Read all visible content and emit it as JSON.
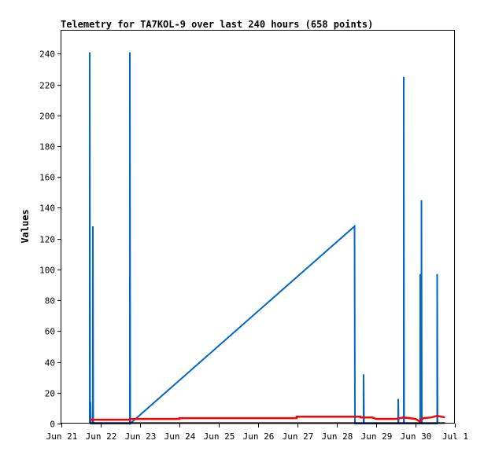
{
  "chart_data": {
    "type": "line",
    "title": "Telemetry for TA7KOL-9 over last 240 hours (658 points)",
    "ylabel": "Values",
    "xlabel": "",
    "ylim": [
      0,
      255
    ],
    "y_ticks": [
      0,
      20,
      40,
      60,
      80,
      100,
      120,
      140,
      160,
      180,
      200,
      220,
      240
    ],
    "xlim": [
      0,
      10
    ],
    "x_ticks": [
      {
        "x": 0,
        "label": "Jun 21"
      },
      {
        "x": 1,
        "label": "Jun 22"
      },
      {
        "x": 2,
        "label": "Jun 23"
      },
      {
        "x": 3,
        "label": "Jun 24"
      },
      {
        "x": 4,
        "label": "Jun 25"
      },
      {
        "x": 5,
        "label": "Jun 26"
      },
      {
        "x": 6,
        "label": "Jun 27"
      },
      {
        "x": 7,
        "label": "Jun 28"
      },
      {
        "x": 8,
        "label": "Jun 29"
      },
      {
        "x": 9,
        "label": "Jun 30"
      },
      {
        "x": 10,
        "label": "Jul 1"
      }
    ],
    "grid": false,
    "legend": "none",
    "series": [
      {
        "color": "#0066cc",
        "points": [
          [
            0.72,
            0
          ],
          [
            0.72,
            241
          ],
          [
            0.73,
            0
          ],
          [
            0.74,
            14
          ],
          [
            0.75,
            0
          ],
          [
            0.8,
            0
          ],
          [
            0.8,
            128
          ],
          [
            0.81,
            0
          ],
          [
            1.74,
            0
          ],
          [
            1.74,
            241
          ],
          [
            1.75,
            0
          ],
          [
            7.45,
            128
          ],
          [
            7.46,
            0
          ],
          [
            7.68,
            0
          ],
          [
            7.68,
            32
          ],
          [
            7.69,
            0
          ],
          [
            8.56,
            0
          ],
          [
            8.56,
            16
          ],
          [
            8.57,
            0
          ],
          [
            8.7,
            0
          ],
          [
            8.7,
            225
          ],
          [
            8.71,
            0
          ],
          [
            9.12,
            0
          ],
          [
            9.12,
            97
          ],
          [
            9.13,
            0
          ],
          [
            9.15,
            0
          ],
          [
            9.15,
            145
          ],
          [
            9.16,
            0
          ],
          [
            9.55,
            0
          ],
          [
            9.55,
            97
          ],
          [
            9.56,
            0
          ]
        ]
      },
      {
        "color": "#ff0000",
        "points": [
          [
            0.72,
            2.5
          ],
          [
            1.74,
            2.5
          ],
          [
            1.76,
            3
          ],
          [
            3.0,
            3
          ],
          [
            3.0,
            3.5
          ],
          [
            5.98,
            3.5
          ],
          [
            5.98,
            4.5
          ],
          [
            7.6,
            4.5
          ],
          [
            7.6,
            4
          ],
          [
            7.9,
            4
          ],
          [
            8.0,
            3
          ],
          [
            8.5,
            3
          ],
          [
            8.7,
            4
          ],
          [
            9.0,
            3
          ],
          [
            9.1,
            1.5
          ],
          [
            9.2,
            3.5
          ],
          [
            9.4,
            4
          ],
          [
            9.55,
            5
          ],
          [
            9.75,
            4
          ]
        ]
      },
      {
        "color": "#000000",
        "points": [
          [
            0.72,
            0.3
          ],
          [
            9.75,
            0.3
          ]
        ]
      }
    ]
  }
}
